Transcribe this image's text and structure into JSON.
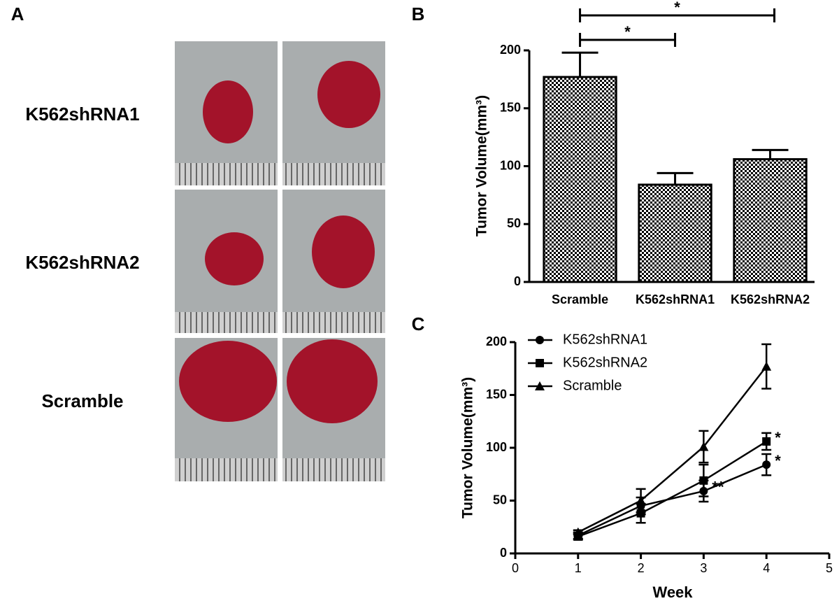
{
  "panel_a": {
    "label": "A",
    "rows": [
      "K562shRNA1",
      "K562shRNA2",
      "Scramble"
    ]
  },
  "chart_data": [
    {
      "type": "bar",
      "label": "B",
      "y_label": "Tumor Volume(mm³)",
      "categories": [
        "Scramble",
        "K562shRNA1",
        "K562shRNA2"
      ],
      "values": [
        177,
        84,
        106
      ],
      "errors": [
        21,
        10,
        8
      ],
      "color": "#000000",
      "ylim": [
        0,
        200
      ],
      "yticks": [
        0,
        50,
        100,
        150,
        200
      ],
      "annotations": [
        "*",
        "*"
      ]
    },
    {
      "type": "line",
      "label": "C",
      "x_label": "Week",
      "y_label": "Tumor Volume(mm³)",
      "x": [
        1,
        2,
        3,
        4
      ],
      "xlim": [
        0,
        5
      ],
      "xticks": [
        0,
        1,
        2,
        3,
        4,
        5
      ],
      "ylim": [
        0,
        200
      ],
      "yticks": [
        0,
        50,
        100,
        150,
        200
      ],
      "legend": "top-left",
      "series": [
        {
          "name": "K562shRNA1",
          "color": "#000000",
          "marker": "circle",
          "values": [
            17,
            45,
            59,
            84
          ],
          "errors": [
            3,
            8,
            10,
            10
          ],
          "significance": [
            null,
            null,
            "**",
            "*"
          ]
        },
        {
          "name": "K562shRNA2",
          "color": "#000000",
          "marker": "square",
          "values": [
            16,
            38,
            69,
            106
          ],
          "errors": [
            3,
            9,
            15,
            8
          ],
          "significance": [
            null,
            null,
            null,
            "*"
          ]
        },
        {
          "name": "Scramble",
          "color": "#000000",
          "marker": "triangle",
          "values": [
            20,
            50,
            101,
            177
          ],
          "errors": [
            2,
            11,
            15,
            21
          ],
          "significance": [
            null,
            null,
            null,
            null
          ]
        }
      ]
    }
  ]
}
